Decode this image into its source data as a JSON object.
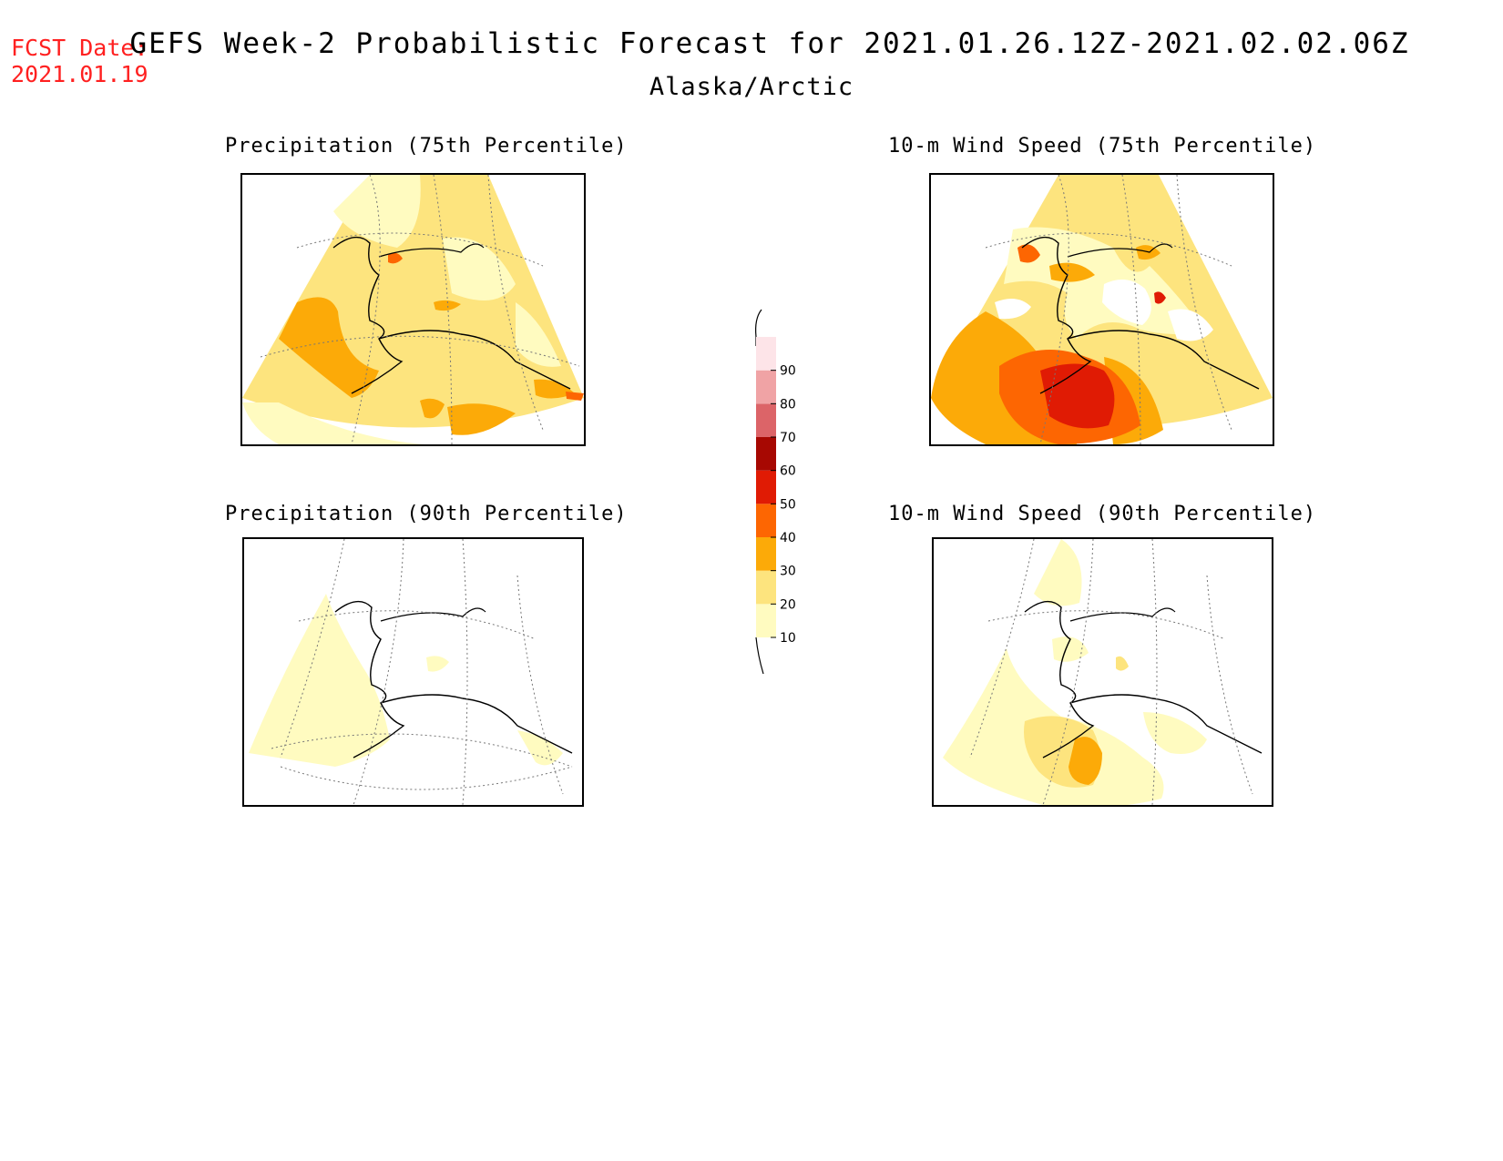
{
  "header": {
    "fcst_label": "FCST Date:",
    "fcst_date": "2021.01.19",
    "title": "GEFS Week-2 Probabilistic Forecast for 2021.01.26.12Z-2021.02.02.06Z",
    "region": "Alaska/Arctic"
  },
  "panels": [
    {
      "title": "Precipitation (75th Percentile)"
    },
    {
      "title": "10-m Wind Speed (75th Percentile)"
    },
    {
      "title": "Precipitation (90th Percentile)"
    },
    {
      "title": "10-m Wind Speed (90th Percentile)"
    }
  ],
  "legend": {
    "levels": [
      10,
      20,
      30,
      40,
      50,
      60,
      70,
      80,
      90
    ],
    "labels": [
      "10",
      "20",
      "30",
      "40",
      "50",
      "60",
      "70",
      "80",
      "90"
    ],
    "colors": [
      "#fffbc0",
      "#fde47e",
      "#fcaa08",
      "#fd6602",
      "#e01b04",
      "#a70802",
      "#dc6468",
      "#f0a3a5",
      "#fde4e8"
    ]
  }
}
